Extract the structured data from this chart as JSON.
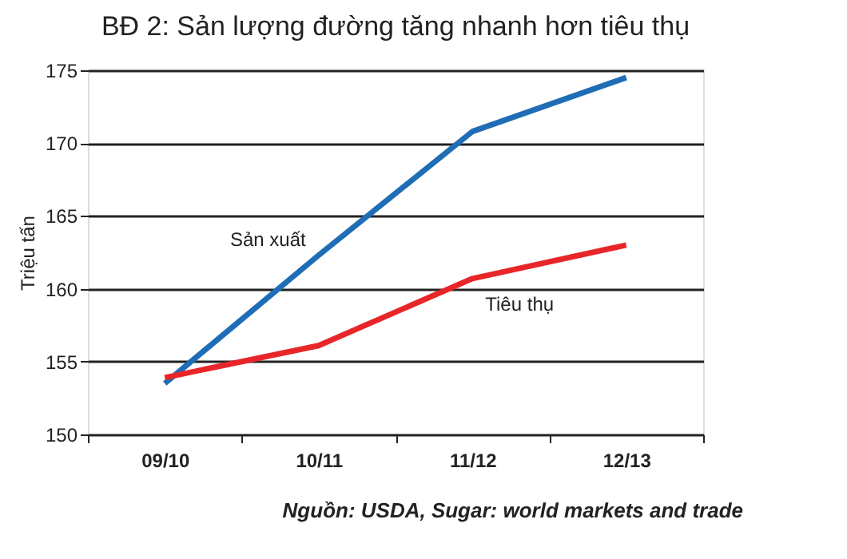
{
  "chart_data": {
    "type": "line",
    "title": "BĐ 2: Sản lượng đường tăng nhanh hơn tiêu thụ",
    "ylabel": "Triệu tấn",
    "categories": [
      "09/10",
      "10/11",
      "11/12",
      "12/13"
    ],
    "series": [
      {
        "name": "Sản xuất",
        "color": "#1f6db5",
        "values": [
          153.5,
          162.3,
          170.8,
          174.5
        ]
      },
      {
        "name": "Tiêu thụ",
        "color": "#e8262a",
        "values": [
          153.9,
          156.1,
          160.7,
          163.0
        ]
      }
    ],
    "ylim": [
      150,
      175
    ],
    "yticks": [
      150,
      155,
      160,
      165,
      170,
      175
    ],
    "grid": "y",
    "legend": false,
    "marker": "none",
    "line_style": "solid",
    "annotations": [
      "Nguồn: USDA, Sugar: world markets and trade"
    ]
  }
}
